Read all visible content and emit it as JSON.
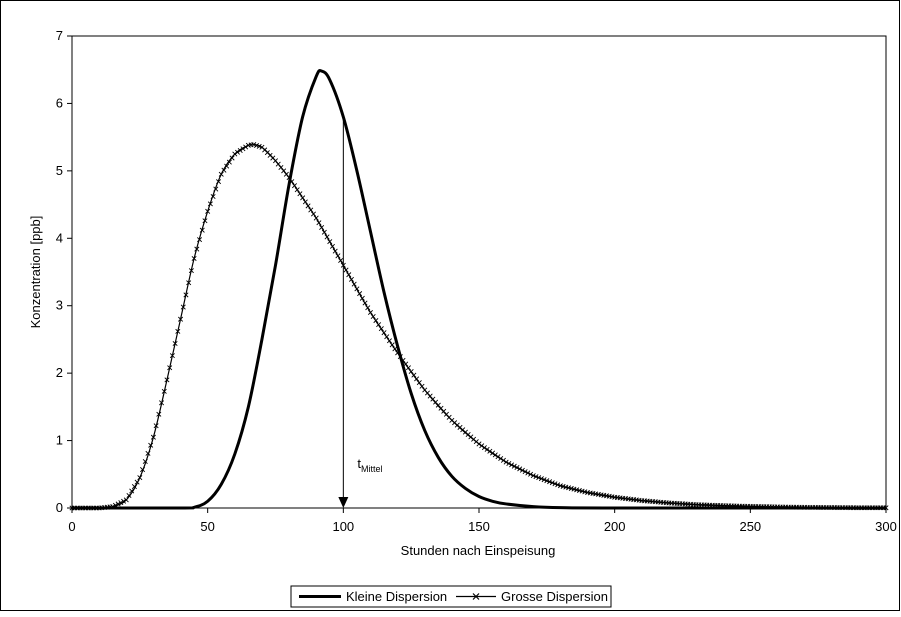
{
  "chart_data": {
    "type": "line",
    "title": "",
    "xlabel": "Stunden nach Einspeisung",
    "ylabel": "Konzentration [ppb]",
    "xlim": [
      0,
      300
    ],
    "ylim": [
      0,
      7
    ],
    "x_ticks": [
      "0",
      "50",
      "100",
      "150",
      "200",
      "250",
      "300"
    ],
    "y_ticks": [
      "0",
      "1",
      "2",
      "3",
      "4",
      "5",
      "6",
      "7"
    ],
    "grid": false,
    "legend_position": "bottom",
    "series": [
      {
        "name": "Kleine Dispersion",
        "style": "solid",
        "points": [
          [
            0,
            0
          ],
          [
            40,
            0
          ],
          [
            45,
            0.01
          ],
          [
            50,
            0.1
          ],
          [
            55,
            0.35
          ],
          [
            60,
            0.8
          ],
          [
            65,
            1.5
          ],
          [
            70,
            2.5
          ],
          [
            75,
            3.6
          ],
          [
            80,
            4.8
          ],
          [
            85,
            5.8
          ],
          [
            90,
            6.4
          ],
          [
            92,
            6.48
          ],
          [
            95,
            6.35
          ],
          [
            100,
            5.8
          ],
          [
            105,
            5.0
          ],
          [
            110,
            4.1
          ],
          [
            115,
            3.2
          ],
          [
            120,
            2.4
          ],
          [
            125,
            1.7
          ],
          [
            130,
            1.15
          ],
          [
            135,
            0.75
          ],
          [
            140,
            0.47
          ],
          [
            145,
            0.29
          ],
          [
            150,
            0.17
          ],
          [
            155,
            0.1
          ],
          [
            160,
            0.06
          ],
          [
            170,
            0.02
          ],
          [
            180,
            0.005
          ],
          [
            200,
            0
          ],
          [
            300,
            0
          ]
        ]
      },
      {
        "name": "Grosse Dispersion",
        "style": "line-with-x-markers",
        "points": [
          [
            0,
            0
          ],
          [
            10,
            0
          ],
          [
            15,
            0.02
          ],
          [
            20,
            0.12
          ],
          [
            25,
            0.45
          ],
          [
            30,
            1.05
          ],
          [
            35,
            1.9
          ],
          [
            40,
            2.8
          ],
          [
            45,
            3.7
          ],
          [
            50,
            4.4
          ],
          [
            55,
            4.95
          ],
          [
            60,
            5.25
          ],
          [
            65,
            5.38
          ],
          [
            67,
            5.39
          ],
          [
            70,
            5.35
          ],
          [
            75,
            5.15
          ],
          [
            80,
            4.9
          ],
          [
            85,
            4.6
          ],
          [
            90,
            4.3
          ],
          [
            95,
            3.95
          ],
          [
            100,
            3.6
          ],
          [
            110,
            2.9
          ],
          [
            120,
            2.3
          ],
          [
            130,
            1.75
          ],
          [
            140,
            1.3
          ],
          [
            150,
            0.95
          ],
          [
            160,
            0.68
          ],
          [
            170,
            0.48
          ],
          [
            180,
            0.33
          ],
          [
            190,
            0.23
          ],
          [
            200,
            0.16
          ],
          [
            210,
            0.11
          ],
          [
            220,
            0.075
          ],
          [
            230,
            0.05
          ],
          [
            240,
            0.035
          ],
          [
            250,
            0.024
          ],
          [
            260,
            0.016
          ],
          [
            270,
            0.01
          ],
          [
            280,
            0.007
          ],
          [
            290,
            0.004
          ],
          [
            300,
            0.003
          ]
        ]
      }
    ],
    "annotations": [
      {
        "text": "t",
        "subscript": "Mittel",
        "arrow_x": 100,
        "arrow_from_y": 5.8,
        "arrow_to_y": 0
      }
    ]
  },
  "colors": {
    "line": "#000000",
    "background": "#ffffff",
    "border": "#000000"
  }
}
